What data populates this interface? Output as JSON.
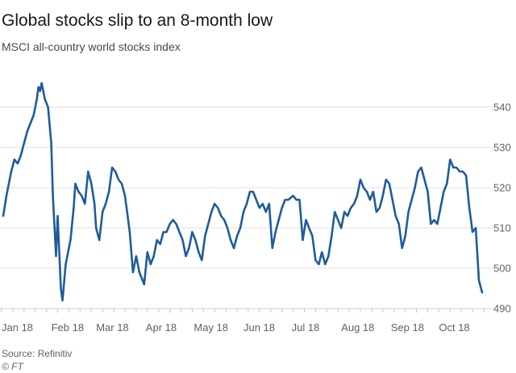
{
  "chart_data": {
    "type": "line",
    "title": "Global stocks slip to an 8-month low",
    "subtitle": "MSCI all-country world stocks index",
    "xlabel": "",
    "ylabel": "",
    "ylim": [
      490,
      545
    ],
    "xlim": [
      "2018-01-01",
      "2018-10-29"
    ],
    "yticks": [
      490,
      500,
      510,
      520,
      530,
      540
    ],
    "xticks": [
      {
        "label": "Jan 18",
        "date": "2018-01-01"
      },
      {
        "label": "Feb 18",
        "date": "2018-02-01"
      },
      {
        "label": "Mar 18",
        "date": "2018-03-01"
      },
      {
        "label": "Apr 18",
        "date": "2018-04-01"
      },
      {
        "label": "May 18",
        "date": "2018-05-01"
      },
      {
        "label": "Jun 18",
        "date": "2018-06-01"
      },
      {
        "label": "Jul 18",
        "date": "2018-07-01"
      },
      {
        "label": "Aug 18",
        "date": "2018-08-01"
      },
      {
        "label": "Sep 18",
        "date": "2018-09-01"
      },
      {
        "label": "Oct 18",
        "date": "2018-10-01"
      }
    ],
    "grid": true,
    "color": "#1f5c99",
    "series": [
      {
        "name": "",
        "points": [
          [
            "2018-01-02",
            513
          ],
          [
            "2018-01-04",
            518
          ],
          [
            "2018-01-07",
            524
          ],
          [
            "2018-01-09",
            527
          ],
          [
            "2018-01-11",
            526
          ],
          [
            "2018-01-13",
            528
          ],
          [
            "2018-01-15",
            531
          ],
          [
            "2018-01-17",
            534
          ],
          [
            "2018-01-19",
            536
          ],
          [
            "2018-01-21",
            538
          ],
          [
            "2018-01-23",
            542
          ],
          [
            "2018-01-24",
            545
          ],
          [
            "2018-01-25",
            544
          ],
          [
            "2018-01-26",
            546
          ],
          [
            "2018-01-28",
            542
          ],
          [
            "2018-01-30",
            540
          ],
          [
            "2018-02-01",
            531
          ],
          [
            "2018-02-02",
            518
          ],
          [
            "2018-02-04",
            503
          ],
          [
            "2018-02-05",
            513
          ],
          [
            "2018-02-07",
            495
          ],
          [
            "2018-02-08",
            492
          ],
          [
            "2018-02-10",
            501
          ],
          [
            "2018-02-13",
            507
          ],
          [
            "2018-02-15",
            515
          ],
          [
            "2018-02-16",
            521
          ],
          [
            "2018-02-18",
            519
          ],
          [
            "2018-02-20",
            518
          ],
          [
            "2018-02-22",
            516
          ],
          [
            "2018-02-24",
            524
          ],
          [
            "2018-02-26",
            521
          ],
          [
            "2018-02-28",
            516
          ],
          [
            "2018-03-01",
            510
          ],
          [
            "2018-03-03",
            507
          ],
          [
            "2018-03-05",
            514
          ],
          [
            "2018-03-07",
            516
          ],
          [
            "2018-03-09",
            519
          ],
          [
            "2018-03-11",
            525
          ],
          [
            "2018-03-13",
            524
          ],
          [
            "2018-03-15",
            522
          ],
          [
            "2018-03-17",
            521
          ],
          [
            "2018-03-19",
            518
          ],
          [
            "2018-03-20",
            515
          ],
          [
            "2018-03-22",
            509
          ],
          [
            "2018-03-24",
            499
          ],
          [
            "2018-03-26",
            503
          ],
          [
            "2018-03-28",
            499
          ],
          [
            "2018-03-31",
            496
          ],
          [
            "2018-04-02",
            504
          ],
          [
            "2018-04-04",
            501
          ],
          [
            "2018-04-06",
            503
          ],
          [
            "2018-04-08",
            507
          ],
          [
            "2018-04-10",
            506
          ],
          [
            "2018-04-12",
            509
          ],
          [
            "2018-04-14",
            509
          ],
          [
            "2018-04-16",
            511
          ],
          [
            "2018-04-18",
            512
          ],
          [
            "2018-04-20",
            511
          ],
          [
            "2018-04-22",
            509
          ],
          [
            "2018-04-24",
            507
          ],
          [
            "2018-04-26",
            503
          ],
          [
            "2018-04-28",
            505
          ],
          [
            "2018-04-30",
            509
          ],
          [
            "2018-05-02",
            507
          ],
          [
            "2018-05-04",
            504
          ],
          [
            "2018-05-06",
            502
          ],
          [
            "2018-05-08",
            508
          ],
          [
            "2018-05-10",
            511
          ],
          [
            "2018-05-12",
            514
          ],
          [
            "2018-05-14",
            516
          ],
          [
            "2018-05-16",
            515
          ],
          [
            "2018-05-18",
            513
          ],
          [
            "2018-05-20",
            512
          ],
          [
            "2018-05-22",
            510
          ],
          [
            "2018-05-24",
            507
          ],
          [
            "2018-05-26",
            505
          ],
          [
            "2018-05-28",
            508
          ],
          [
            "2018-05-30",
            510
          ],
          [
            "2018-06-01",
            514
          ],
          [
            "2018-06-03",
            516
          ],
          [
            "2018-06-05",
            519
          ],
          [
            "2018-06-07",
            519
          ],
          [
            "2018-06-09",
            517
          ],
          [
            "2018-06-11",
            515
          ],
          [
            "2018-06-13",
            516
          ],
          [
            "2018-06-15",
            514
          ],
          [
            "2018-06-17",
            516
          ],
          [
            "2018-06-19",
            505
          ],
          [
            "2018-06-21",
            509
          ],
          [
            "2018-06-23",
            512
          ],
          [
            "2018-06-25",
            515
          ],
          [
            "2018-06-27",
            517
          ],
          [
            "2018-06-29",
            517
          ],
          [
            "2018-07-02",
            518
          ],
          [
            "2018-07-04",
            517
          ],
          [
            "2018-07-06",
            517
          ],
          [
            "2018-07-08",
            507
          ],
          [
            "2018-07-10",
            512
          ],
          [
            "2018-07-12",
            510
          ],
          [
            "2018-07-14",
            508
          ],
          [
            "2018-07-16",
            502
          ],
          [
            "2018-07-18",
            501
          ],
          [
            "2018-07-20",
            504
          ],
          [
            "2018-07-22",
            501
          ],
          [
            "2018-07-24",
            503
          ],
          [
            "2018-07-26",
            508
          ],
          [
            "2018-07-28",
            514
          ],
          [
            "2018-07-30",
            512
          ],
          [
            "2018-08-01",
            510
          ],
          [
            "2018-08-03",
            514
          ],
          [
            "2018-08-05",
            513
          ],
          [
            "2018-08-07",
            515
          ],
          [
            "2018-08-09",
            516
          ],
          [
            "2018-08-11",
            518
          ],
          [
            "2018-08-13",
            522
          ],
          [
            "2018-08-15",
            520
          ],
          [
            "2018-08-17",
            519
          ],
          [
            "2018-08-19",
            517
          ],
          [
            "2018-08-21",
            519
          ],
          [
            "2018-08-23",
            514
          ],
          [
            "2018-08-25",
            515
          ],
          [
            "2018-08-27",
            518
          ],
          [
            "2018-08-29",
            522
          ],
          [
            "2018-08-31",
            521
          ],
          [
            "2018-09-02",
            517
          ],
          [
            "2018-09-04",
            513
          ],
          [
            "2018-09-06",
            511
          ],
          [
            "2018-09-08",
            505
          ],
          [
            "2018-09-10",
            508
          ],
          [
            "2018-09-12",
            514
          ],
          [
            "2018-09-14",
            517
          ],
          [
            "2018-09-16",
            520
          ],
          [
            "2018-09-18",
            524
          ],
          [
            "2018-09-20",
            525
          ],
          [
            "2018-09-22",
            522
          ],
          [
            "2018-09-24",
            519
          ],
          [
            "2018-09-26",
            511
          ],
          [
            "2018-09-28",
            512
          ],
          [
            "2018-09-30",
            511
          ],
          [
            "2018-10-02",
            515
          ],
          [
            "2018-10-04",
            519
          ],
          [
            "2018-10-06",
            521
          ],
          [
            "2018-10-08",
            527
          ],
          [
            "2018-10-10",
            525
          ],
          [
            "2018-10-12",
            525
          ],
          [
            "2018-10-14",
            524
          ],
          [
            "2018-10-16",
            524
          ],
          [
            "2018-10-18",
            523
          ],
          [
            "2018-10-20",
            515
          ],
          [
            "2018-10-22",
            509
          ],
          [
            "2018-10-24",
            510
          ],
          [
            "2018-10-26",
            497
          ],
          [
            "2018-10-28",
            494
          ]
        ]
      }
    ]
  },
  "footer": {
    "source": "Source: Refinitiv",
    "credit": "© FT"
  }
}
